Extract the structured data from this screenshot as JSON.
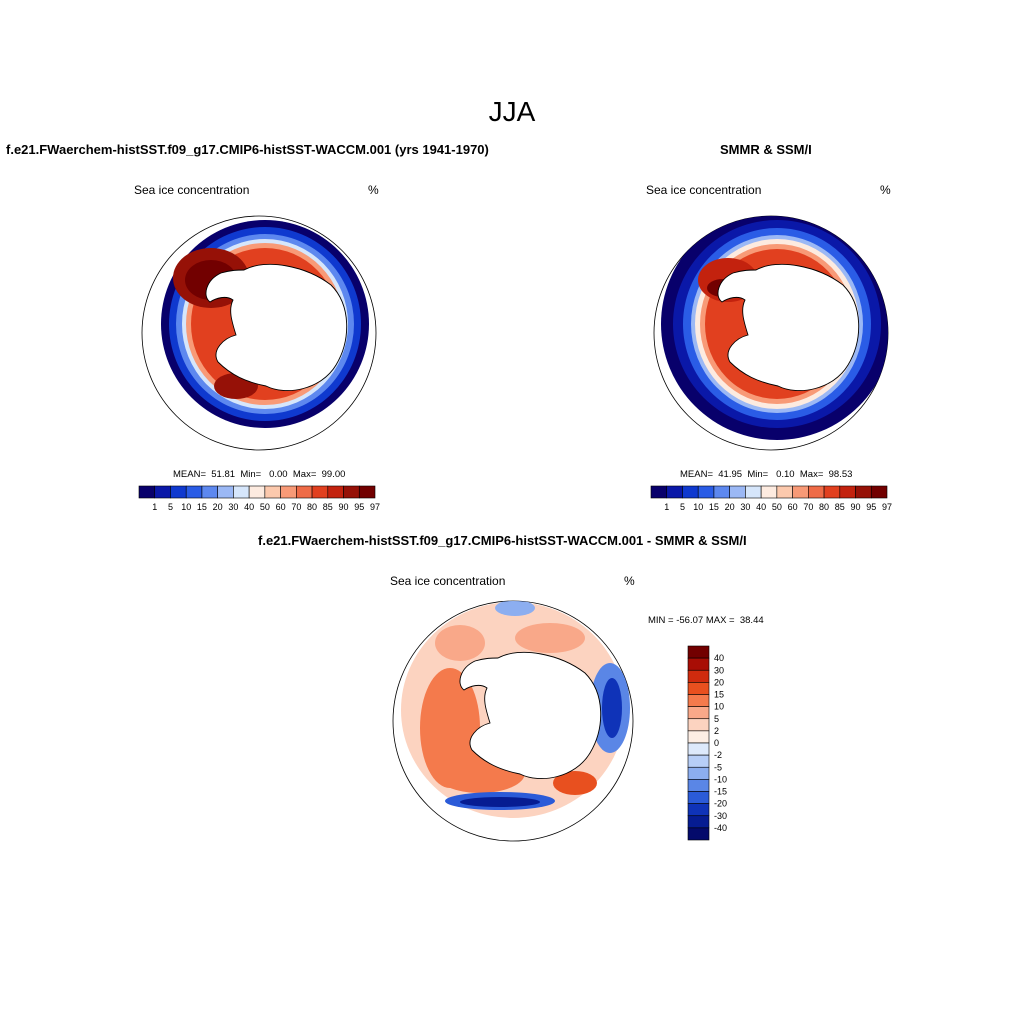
{
  "title": "JJA",
  "colors": {
    "seq": [
      "#08006b",
      "#0a18a8",
      "#0f39cf",
      "#2a5ce6",
      "#5d88ef",
      "#9bb8f5",
      "#d6e6fb",
      "#fdebe0",
      "#fcc9ad",
      "#f89a77",
      "#ef6b47",
      "#e1401f",
      "#c3220e",
      "#961107",
      "#720000"
    ],
    "div": [
      "#720000",
      "#a80d05",
      "#cf2b0e",
      "#e8501f",
      "#f47a4c",
      "#f9a889",
      "#fcd3c0",
      "#fdeee4",
      "#dde9fb",
      "#b7cef7",
      "#8caef0",
      "#5a86e6",
      "#2b5bd8",
      "#0f33b8",
      "#061c92",
      "#040a6b"
    ],
    "land": "#ffffff",
    "outline": "#000000"
  },
  "panels": [
    {
      "title": "f.e21.FWaerchem-histSST.f09_g17.CMIP6-histSST-WACCM.001 (yrs 1941-1970)",
      "var_label": "Sea ice concentration",
      "units": "%",
      "stats": "MEAN=  51.81  Min=   0.00  Max=  99.00"
    },
    {
      "title": "SMMR & SSM/I",
      "var_label": "Sea ice concentration",
      "units": "%",
      "stats": "MEAN=  41.95  Min=   0.10  Max=  98.53"
    },
    {
      "title": "f.e21.FWaerchem-histSST.f09_g17.CMIP6-histSST-WACCM.001 - SMMR & SSM/I",
      "var_label": "Sea ice concentration",
      "units": "%",
      "stats": "MIN = -56.07 MAX =  38.44"
    }
  ],
  "colorbar_seq_labels": [
    "1",
    "5",
    "10",
    "15",
    "20",
    "30",
    "40",
    "50",
    "60",
    "70",
    "80",
    "85",
    "90",
    "95",
    "97"
  ],
  "colorbar_div_labels": [
    "40",
    "30",
    "20",
    "15",
    "10",
    "5",
    "2",
    "0",
    "-2",
    "-5",
    "-10",
    "-15",
    "-20",
    "-30",
    "-40"
  ]
}
